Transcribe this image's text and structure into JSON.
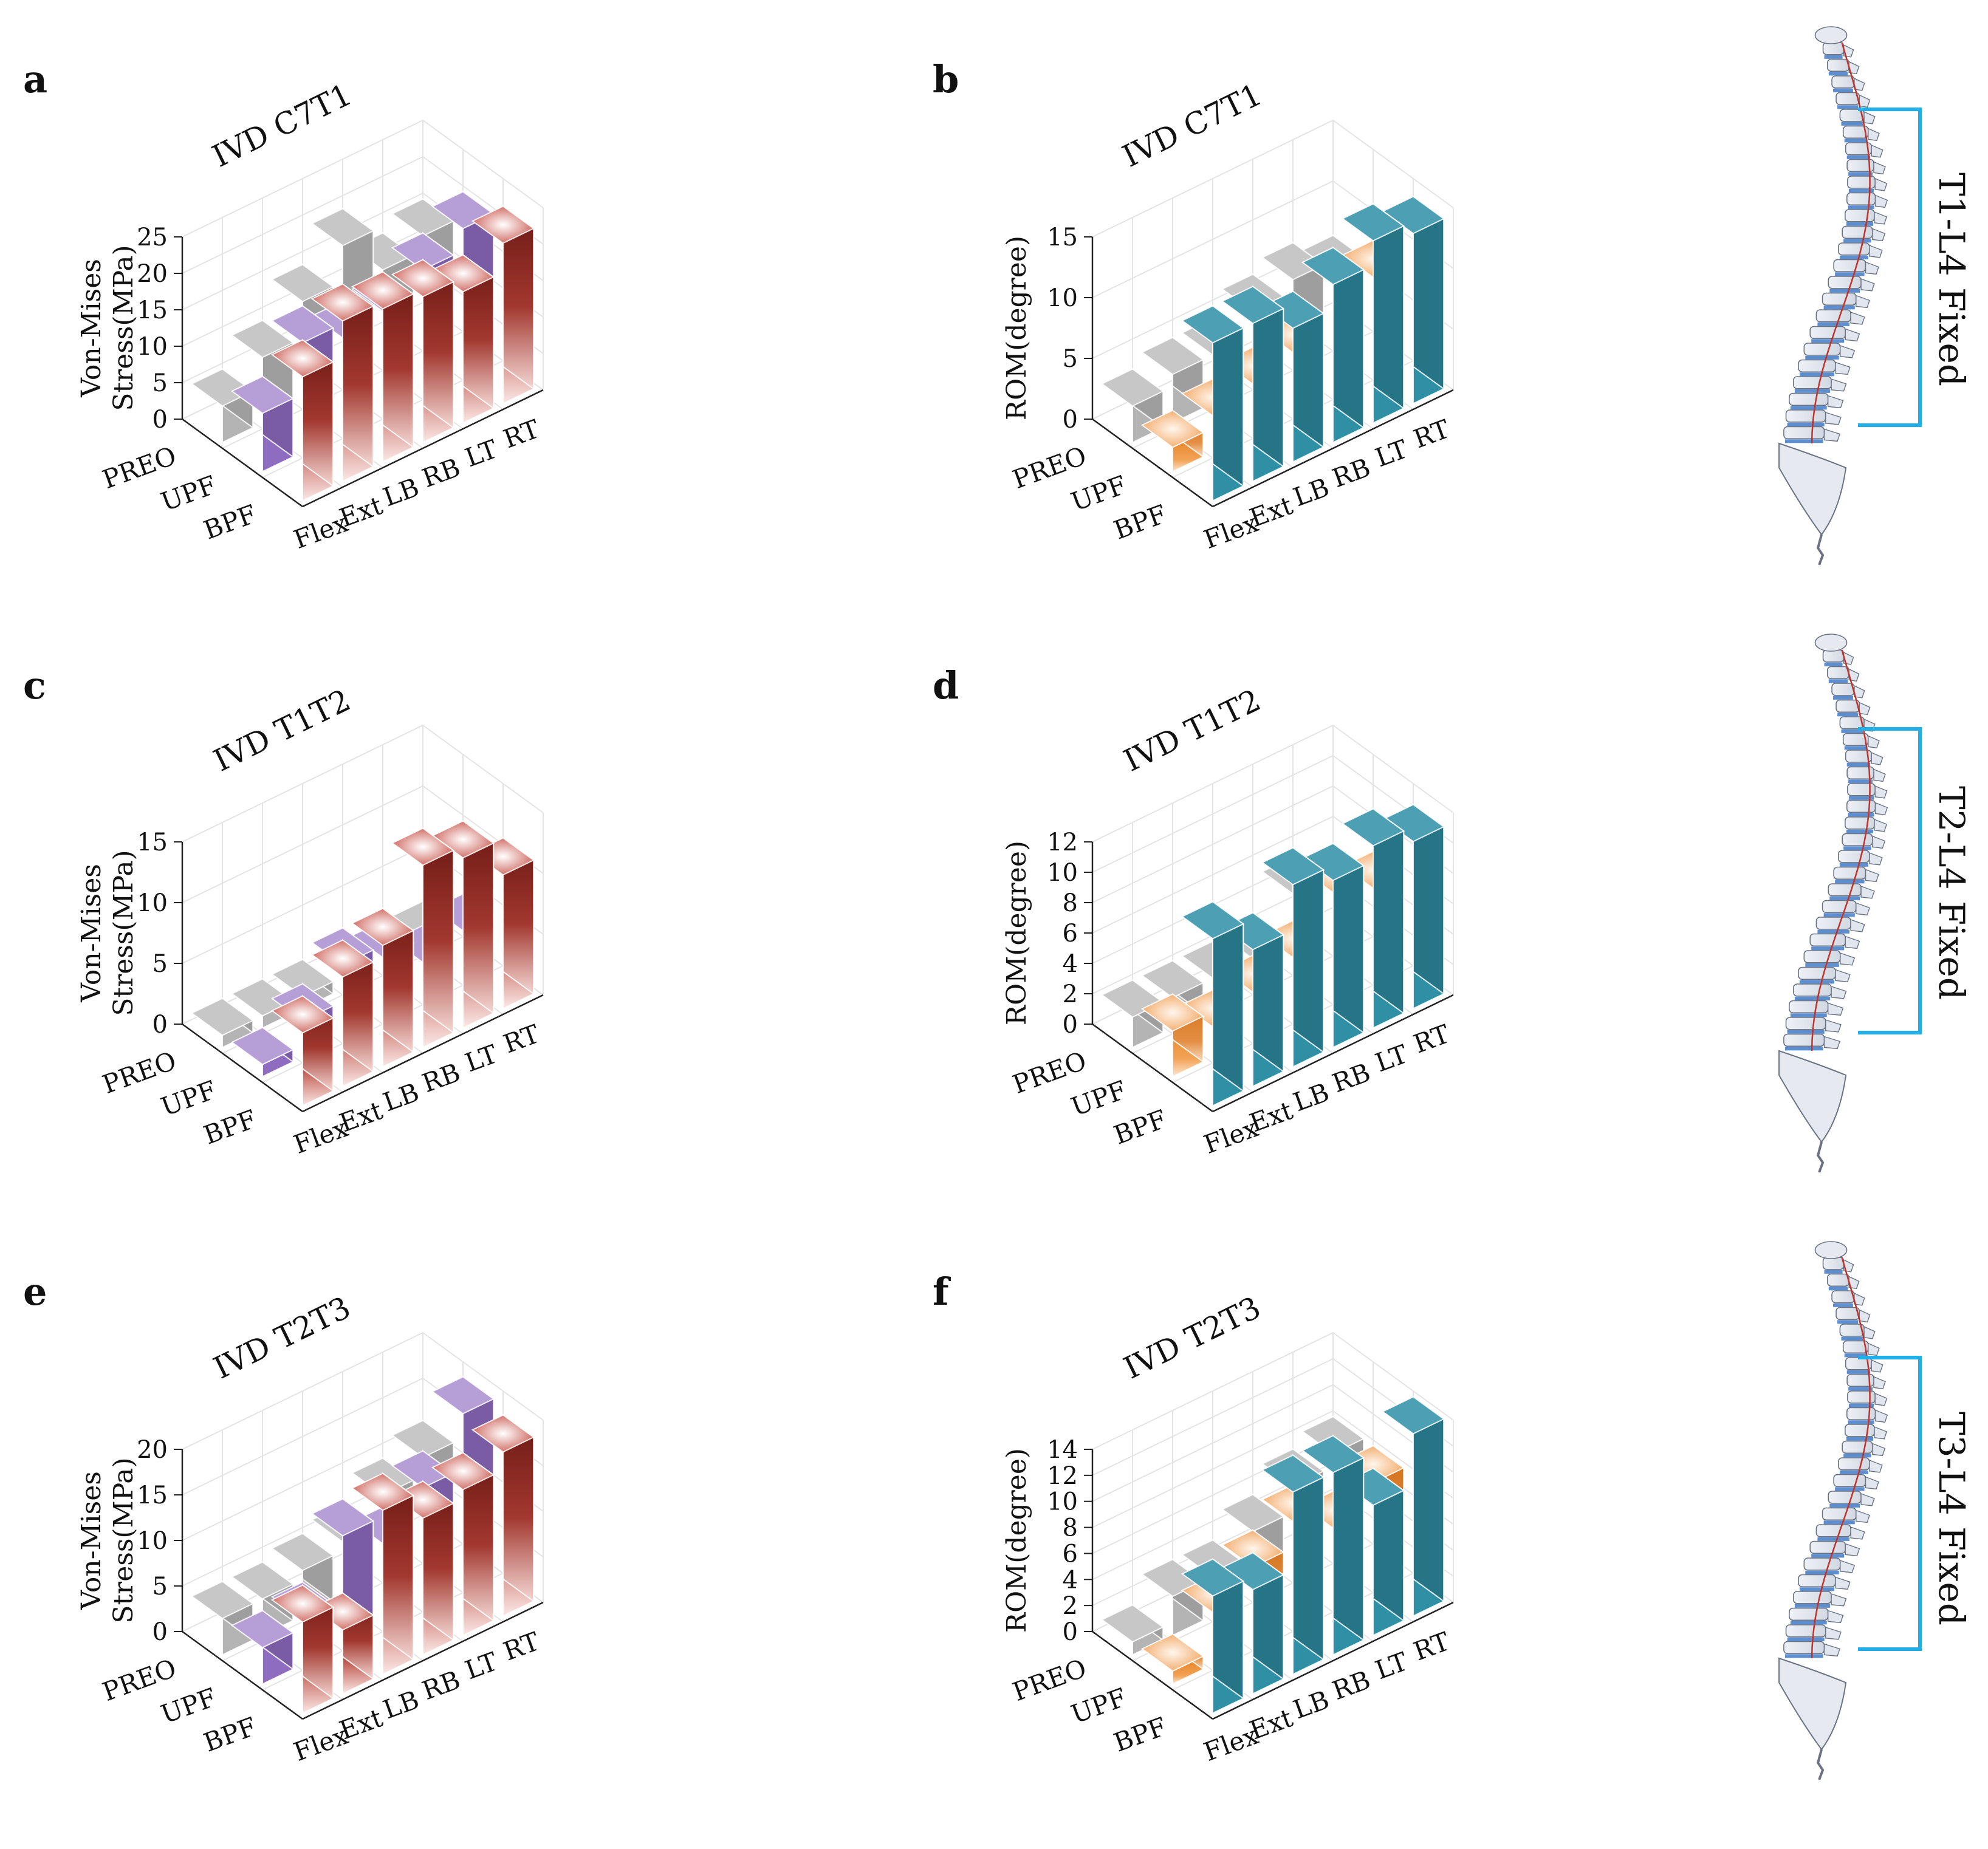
{
  "figure": {
    "category_labels": [
      "Flex",
      "Ext",
      "LB",
      "RB",
      "LT",
      "RT"
    ],
    "group_labels": [
      "PREO",
      "UPF",
      "BPF"
    ],
    "colors": {
      "PREO": "#b4b4b4",
      "UPF_stress": "#8e6cc0",
      "BPF_stress": "#b5433a",
      "UPF_rom": "#ee8f33",
      "BPF_rom": "#2e8fa5",
      "bracket": "#22aee6"
    }
  },
  "chart_data": [
    {
      "panel": "a",
      "type": "bar3d",
      "title": "IVD C7T1",
      "zlabel_line1": "Von-Mises",
      "zlabel_line2": "Stress(MPa)",
      "zlim": [
        0,
        25
      ],
      "zticks": [
        "0",
        "5",
        "10",
        "15",
        "20",
        "25"
      ],
      "categories": [
        "Flex",
        "Ext",
        "LB",
        "RB",
        "LT",
        "RT"
      ],
      "series": [
        {
          "name": "PREO",
          "values": [
            5,
            9,
            14,
            19,
            13,
            15
          ]
        },
        {
          "name": "UPF",
          "values": [
            8,
            15,
            13,
            14,
            17,
            20
          ]
        },
        {
          "name": "BPF",
          "values": [
            17,
            22,
            21,
            20,
            18,
            22
          ]
        }
      ]
    },
    {
      "panel": "b",
      "type": "bar3d",
      "title": "IVD C7T1",
      "zlabel_line1": "ROM(degree)",
      "zlabel_line2": "",
      "zlim": [
        0,
        15
      ],
      "zticks": [
        "0",
        "5",
        "10",
        "15"
      ],
      "categories": [
        "Flex",
        "Ext",
        "LB",
        "RB",
        "LT",
        "RT"
      ],
      "series": [
        {
          "name": "PREO",
          "values": [
            3,
            4,
            4,
            6,
            7,
            6
          ]
        },
        {
          "name": "UPF",
          "values": [
            2,
            3,
            4,
            5,
            9,
            8
          ]
        },
        {
          "name": "BPF",
          "values": [
            13,
            13,
            11,
            13,
            17,
            14
          ]
        }
      ]
    },
    {
      "panel": "c",
      "type": "bar3d",
      "title": "IVD T1T2",
      "zlabel_line1": "Von-Mises",
      "zlabel_line2": "Stress(MPa)",
      "zlim": [
        0,
        15
      ],
      "zticks": [
        "0",
        "5",
        "10",
        "15"
      ],
      "categories": [
        "Flex",
        "Ext",
        "LB",
        "RB",
        "LT",
        "RT"
      ],
      "series": [
        {
          "name": "PREO",
          "values": [
            1,
            1,
            1,
            1,
            2,
            1
          ]
        },
        {
          "name": "UPF",
          "values": [
            1,
            3,
            6,
            5,
            3,
            4
          ]
        },
        {
          "name": "BPF",
          "values": [
            6,
            9,
            10,
            16,
            14,
            11
          ]
        }
      ]
    },
    {
      "panel": "d",
      "type": "bar3d",
      "title": "IVD T1T2",
      "zlabel_line1": "ROM(degree)",
      "zlabel_line2": "",
      "zlim": [
        0,
        12
      ],
      "zticks": [
        "0",
        "2",
        "4",
        "6",
        "8",
        "10",
        "12"
      ],
      "categories": [
        "Flex",
        "Ext",
        "LB",
        "RB",
        "LT",
        "RT"
      ],
      "series": [
        {
          "name": "PREO",
          "values": [
            2,
            2,
            2,
            2,
            5,
            4
          ]
        },
        {
          "name": "UPF",
          "values": [
            3,
            2,
            3,
            4,
            7,
            6
          ]
        },
        {
          "name": "BPF",
          "values": [
            11,
            9,
            12,
            11,
            14,
            11
          ]
        }
      ]
    },
    {
      "panel": "e",
      "type": "bar3d",
      "title": "IVD T2T3",
      "zlabel_line1": "Von-Mises",
      "zlabel_line2": "Stress(MPa)",
      "zlim": [
        0,
        20
      ],
      "zticks": [
        "0",
        "5",
        "10",
        "15",
        "20"
      ],
      "categories": [
        "Flex",
        "Ext",
        "LB",
        "RB",
        "LT",
        "RT"
      ],
      "series": [
        {
          "name": "PREO",
          "values": [
            4,
            4,
            5,
            6,
            9,
            11
          ]
        },
        {
          "name": "UPF",
          "values": [
            4,
            5,
            12,
            9,
            13,
            19
          ]
        },
        {
          "name": "BPF",
          "values": [
            10,
            7,
            18,
            15,
            16,
            18
          ]
        }
      ]
    },
    {
      "panel": "f",
      "type": "bar3d",
      "title": "IVD T2T3",
      "zlabel_line1": "ROM(degree)",
      "zlabel_line2": "",
      "zlim": [
        0,
        14
      ],
      "zticks": [
        "0",
        "2",
        "4",
        "6",
        "8",
        "10",
        "12",
        "14"
      ],
      "categories": [
        "Flex",
        "Ext",
        "LB",
        "RB",
        "LT",
        "RT"
      ],
      "series": [
        {
          "name": "PREO",
          "values": [
            1,
            3,
            3,
            5,
            7,
            8
          ]
        },
        {
          "name": "UPF",
          "values": [
            1,
            4,
            6,
            8,
            6,
            8
          ]
        },
        {
          "name": "BPF",
          "values": [
            9,
            8,
            14,
            15,
            10,
            15
          ]
        }
      ]
    }
  ],
  "spines": [
    {
      "label": "T1-L4 Fixed"
    },
    {
      "label": "T2-L4 Fixed"
    },
    {
      "label": "T3-L4 Fixed"
    }
  ]
}
